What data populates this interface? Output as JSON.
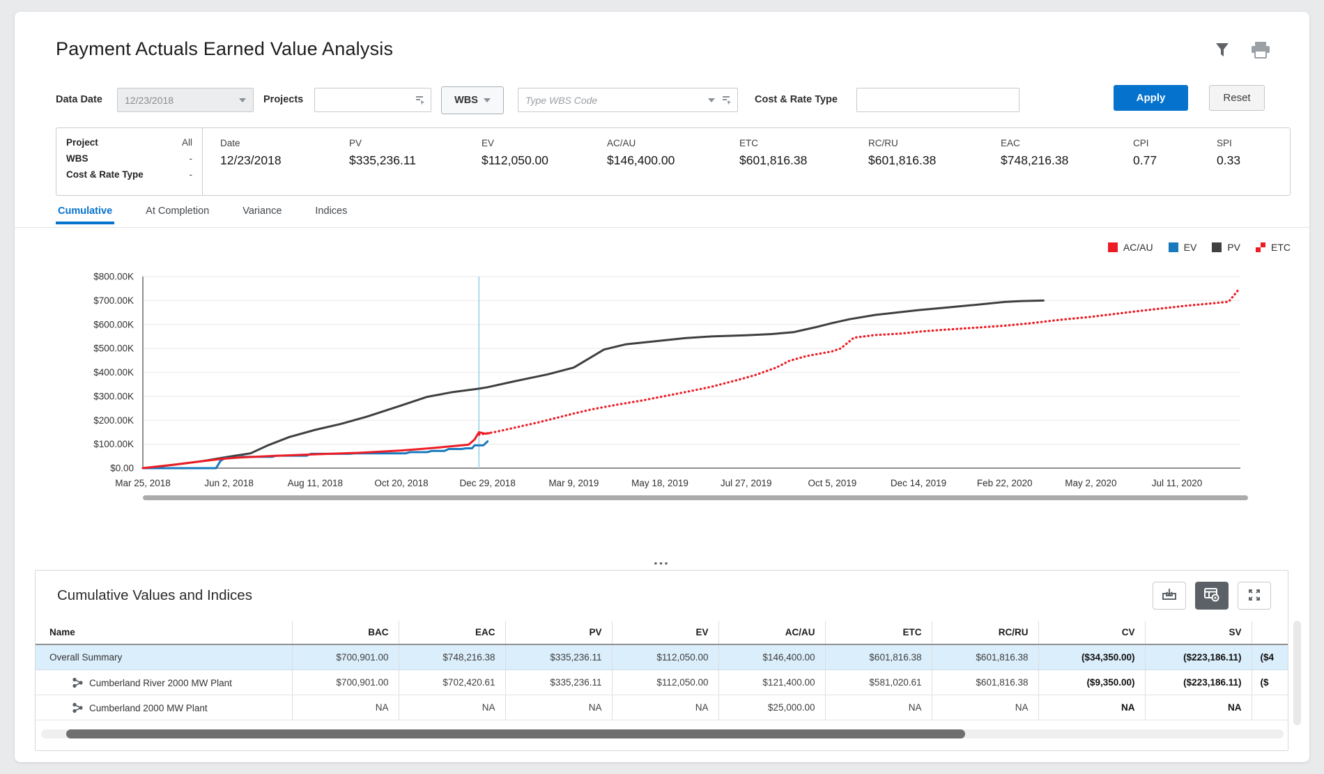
{
  "page": {
    "title": "Payment Actuals Earned Value Analysis"
  },
  "accent": "#0572ce",
  "filters": {
    "data_date": {
      "label": "Data Date",
      "value": "12/23/2018"
    },
    "projects": {
      "label": "Projects",
      "value": ""
    },
    "wbs": {
      "button_label": "WBS",
      "placeholder": "Type WBS Code",
      "value": ""
    },
    "cost_rate_type": {
      "label": "Cost & Rate Type",
      "value": ""
    },
    "apply_label": "Apply",
    "reset_label": "Reset"
  },
  "summary": {
    "left": [
      {
        "label": "Project",
        "value": "All"
      },
      {
        "label": "WBS",
        "value": "-"
      },
      {
        "label": "Cost & Rate Type",
        "value": "-"
      }
    ],
    "metrics": [
      {
        "label": "Date",
        "value": "12/23/2018"
      },
      {
        "label": "PV",
        "value": "$335,236.11"
      },
      {
        "label": "EV",
        "value": "$112,050.00"
      },
      {
        "label": "AC/AU",
        "value": "$146,400.00"
      },
      {
        "label": "ETC",
        "value": "$601,816.38"
      },
      {
        "label": "RC/RU",
        "value": "$601,816.38"
      },
      {
        "label": "EAC",
        "value": "$748,216.38"
      },
      {
        "label": "CPI",
        "value": "0.77"
      },
      {
        "label": "SPI",
        "value": "0.33"
      }
    ]
  },
  "tabs": [
    {
      "label": "Cumulative",
      "active": true
    },
    {
      "label": "At Completion",
      "active": false
    },
    {
      "label": "Variance",
      "active": false
    },
    {
      "label": "Indices",
      "active": false
    }
  ],
  "legend": [
    {
      "label": "AC/AU",
      "color": "#ed1c24",
      "marker": "square"
    },
    {
      "label": "EV",
      "color": "#1879bd",
      "marker": "square"
    },
    {
      "label": "PV",
      "color": "#404040",
      "marker": "square"
    },
    {
      "label": "ETC",
      "color": "#ed1c24",
      "marker": "dotted-square"
    }
  ],
  "chart_data": {
    "type": "line",
    "title": "",
    "xlabel": "",
    "ylabel": "",
    "y_unit": "USD (K)",
    "ylim": [
      0,
      800
    ],
    "grid": "horizontal",
    "legend_position": "top-right",
    "y_tick_labels": [
      "$0.00",
      "$100.00K",
      "$200.00K",
      "$300.00K",
      "$400.00K",
      "$500.00K",
      "$600.00K",
      "$700.00K",
      "$800.00K"
    ],
    "x_tick_labels": [
      "Mar 25, 2018",
      "Jun 2, 2018",
      "Aug 11, 2018",
      "Oct 20, 2018",
      "Dec 29, 2018",
      "Mar 9, 2019",
      "May 18, 2019",
      "Jul 27, 2019",
      "Oct 5, 2019",
      "Dec 14, 2019",
      "Feb 22, 2020",
      "May 2, 2020",
      "Jul 11, 2020"
    ],
    "data_date": "12/23/2018",
    "data_date_x": 3.9,
    "data_date_line_color": "#9ad1ea",
    "series": [
      {
        "name": "PV",
        "color": "#3f3f3f",
        "style": "solid",
        "points": [
          [
            0,
            0
          ],
          [
            0.35,
            14
          ],
          [
            0.7,
            30
          ],
          [
            1,
            48
          ],
          [
            1.25,
            62
          ],
          [
            1.45,
            95
          ],
          [
            1.7,
            130
          ],
          [
            2,
            160
          ],
          [
            2.3,
            185
          ],
          [
            2.6,
            215
          ],
          [
            3,
            262
          ],
          [
            3.3,
            298
          ],
          [
            3.6,
            318
          ],
          [
            3.9,
            332
          ],
          [
            4,
            338
          ],
          [
            4.3,
            362
          ],
          [
            4.7,
            392
          ],
          [
            5,
            420
          ],
          [
            5.15,
            452
          ],
          [
            5.35,
            495
          ],
          [
            5.6,
            517
          ],
          [
            6,
            532
          ],
          [
            6.3,
            543
          ],
          [
            6.6,
            550
          ],
          [
            7,
            555
          ],
          [
            7.3,
            560
          ],
          [
            7.55,
            568
          ],
          [
            7.8,
            588
          ],
          [
            8,
            606
          ],
          [
            8.2,
            622
          ],
          [
            8.5,
            640
          ],
          [
            8.8,
            652
          ],
          [
            9,
            660
          ],
          [
            9.3,
            670
          ],
          [
            9.6,
            680
          ],
          [
            10,
            694
          ],
          [
            10.2,
            698
          ],
          [
            10.45,
            700
          ]
        ]
      },
      {
        "name": "EV",
        "color": "#1879bd",
        "style": "solid",
        "points": [
          [
            0,
            0
          ],
          [
            0.85,
            0
          ],
          [
            0.9,
            30
          ],
          [
            0.95,
            42
          ],
          [
            1.1,
            44
          ],
          [
            1.15,
            47
          ],
          [
            1.5,
            47
          ],
          [
            1.55,
            52
          ],
          [
            1.9,
            52
          ],
          [
            1.95,
            60
          ],
          [
            2.4,
            60
          ],
          [
            2.45,
            62
          ],
          [
            3.05,
            62
          ],
          [
            3.1,
            67
          ],
          [
            3.3,
            67
          ],
          [
            3.35,
            72
          ],
          [
            3.5,
            72
          ],
          [
            3.55,
            80
          ],
          [
            3.7,
            80
          ],
          [
            3.75,
            83
          ],
          [
            3.82,
            83
          ],
          [
            3.85,
            95
          ],
          [
            3.95,
            95
          ],
          [
            4.0,
            112
          ]
        ]
      },
      {
        "name": "AC/AU",
        "color": "#ed1c24",
        "style": "solid",
        "points": [
          [
            0,
            0
          ],
          [
            0.3,
            12
          ],
          [
            0.6,
            25
          ],
          [
            0.9,
            38
          ],
          [
            1.1,
            44
          ],
          [
            1.5,
            51
          ],
          [
            2,
            58
          ],
          [
            2.5,
            64
          ],
          [
            3,
            74
          ],
          [
            3.3,
            82
          ],
          [
            3.6,
            92
          ],
          [
            3.78,
            98
          ],
          [
            3.85,
            120
          ],
          [
            3.9,
            150
          ],
          [
            3.97,
            144
          ],
          [
            4.02,
            146
          ]
        ]
      },
      {
        "name": "ETC",
        "color": "#ed1c24",
        "style": "dotted",
        "points": [
          [
            3.9,
            140
          ],
          [
            4.1,
            152
          ],
          [
            4.35,
            172
          ],
          [
            4.6,
            192
          ],
          [
            4.8,
            210
          ],
          [
            5,
            228
          ],
          [
            5.2,
            245
          ],
          [
            5.5,
            265
          ],
          [
            5.8,
            283
          ],
          [
            6,
            297
          ],
          [
            6.3,
            318
          ],
          [
            6.6,
            340
          ],
          [
            6.9,
            368
          ],
          [
            7.1,
            388
          ],
          [
            7.35,
            420
          ],
          [
            7.5,
            448
          ],
          [
            7.7,
            468
          ],
          [
            8,
            488
          ],
          [
            8.1,
            500
          ],
          [
            8.25,
            545
          ],
          [
            8.5,
            556
          ],
          [
            8.8,
            562
          ],
          [
            9,
            570
          ],
          [
            9.3,
            578
          ],
          [
            9.6,
            585
          ],
          [
            10,
            595
          ],
          [
            10.3,
            605
          ],
          [
            10.6,
            618
          ],
          [
            11,
            632
          ],
          [
            11.3,
            645
          ],
          [
            11.6,
            658
          ],
          [
            11.9,
            670
          ],
          [
            12.1,
            678
          ],
          [
            12.4,
            688
          ],
          [
            12.6,
            695
          ],
          [
            12.72,
            748
          ]
        ]
      }
    ]
  },
  "splitter": {
    "handle": "•••"
  },
  "table": {
    "title": "Cumulative Values and Indices",
    "toolbar": [
      {
        "name": "export-button",
        "icon": "download-icon",
        "active": false
      },
      {
        "name": "table-settings-button",
        "icon": "table-settings-icon",
        "active": true
      },
      {
        "name": "expand-button",
        "icon": "expand-icon",
        "active": false
      }
    ],
    "columns": [
      "Name",
      "BAC",
      "EAC",
      "PV",
      "EV",
      "AC/AU",
      "ETC",
      "RC/RU",
      "CV",
      "SV",
      ""
    ],
    "rows": [
      {
        "name": "Overall Summary",
        "icon": false,
        "highlight": true,
        "values": [
          "$700,901.00",
          "$748,216.38",
          "$335,236.11",
          "$112,050.00",
          "$146,400.00",
          "$601,816.38",
          "$601,816.38",
          "($34,350.00)",
          "($223,186.11)",
          "($4"
        ]
      },
      {
        "name": "Cumberland River 2000 MW Plant",
        "icon": true,
        "highlight": false,
        "values": [
          "$700,901.00",
          "$702,420.61",
          "$335,236.11",
          "$112,050.00",
          "$121,400.00",
          "$581,020.61",
          "$601,816.38",
          "($9,350.00)",
          "($223,186.11)",
          "($"
        ]
      },
      {
        "name": "Cumberland 2000 MW Plant",
        "icon": true,
        "highlight": false,
        "values": [
          "NA",
          "NA",
          "NA",
          "NA",
          "$25,000.00",
          "NA",
          "NA",
          "NA",
          "NA",
          ""
        ]
      }
    ]
  }
}
